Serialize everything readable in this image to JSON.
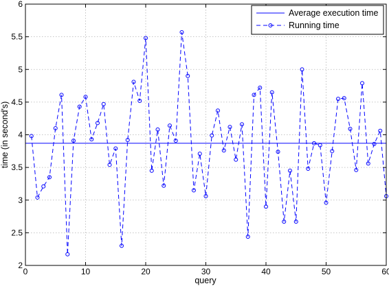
{
  "chart_data": {
    "type": "line",
    "xlabel": "query",
    "ylabel": "time (in second's)",
    "xlim": [
      0,
      60
    ],
    "ylim": [
      2,
      6
    ],
    "xticks": [
      "0",
      "10",
      "20",
      "30",
      "40",
      "50",
      "60"
    ],
    "yticks": [
      "2",
      "2.5",
      "3",
      "3.5",
      "4",
      "4.5",
      "5",
      "5.5",
      "6"
    ],
    "grid": true,
    "legend_position": "top-right",
    "colors": {
      "series": "#0000ff",
      "grid": "#b3b3b3",
      "axes": "#000000"
    },
    "series": [
      {
        "name": "Average execution time",
        "style": "solid",
        "x": [
          0,
          60
        ],
        "y": [
          3.87,
          3.87
        ]
      },
      {
        "name": "Running time",
        "style": "dashed-circle-markers",
        "x": [
          1,
          2,
          3,
          4,
          5,
          6,
          7,
          8,
          9,
          10,
          11,
          12,
          13,
          14,
          15,
          16,
          17,
          18,
          19,
          20,
          21,
          22,
          23,
          24,
          25,
          26,
          27,
          28,
          29,
          30,
          31,
          32,
          33,
          34,
          35,
          36,
          37,
          38,
          39,
          40,
          41,
          42,
          43,
          44,
          45,
          46,
          47,
          48,
          49,
          50,
          51,
          52,
          53,
          54,
          55,
          56,
          57,
          58,
          59,
          60
        ],
        "y": [
          3.98,
          3.04,
          3.21,
          3.35,
          4.1,
          4.61,
          2.17,
          3.91,
          4.43,
          4.58,
          3.93,
          4.18,
          4.47,
          3.54,
          3.79,
          2.3,
          3.92,
          4.81,
          4.52,
          5.48,
          3.45,
          4.08,
          3.22,
          4.14,
          3.91,
          5.57,
          4.9,
          3.15,
          3.71,
          3.06,
          3.99,
          4.37,
          3.76,
          4.12,
          3.62,
          4.16,
          2.44,
          4.61,
          4.72,
          2.9,
          4.65,
          3.74,
          2.67,
          3.45,
          2.67,
          5.0,
          3.48,
          3.87,
          3.84,
          2.96,
          3.75,
          4.55,
          4.56,
          4.09,
          3.46,
          4.79,
          3.56,
          3.86,
          4.06,
          3.06
        ]
      }
    ]
  }
}
